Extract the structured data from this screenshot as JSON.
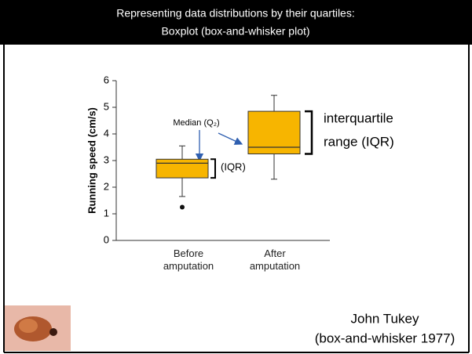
{
  "header": {
    "line1": "Representing data distributions by their quartiles:",
    "line2": "Boxplot (box-and-whisker plot)"
  },
  "chart_data": {
    "type": "box",
    "y_label": "Running speed (cm/s)",
    "categories": [
      "Before amputation",
      "After amputation"
    ],
    "boxes": [
      {
        "whislo": 1.65,
        "q1": 2.35,
        "med": 2.9,
        "q3": 3.05,
        "whishi": 3.55,
        "fliers": [
          1.25
        ]
      },
      {
        "whislo": 2.3,
        "q1": 3.25,
        "med": 3.5,
        "q3": 4.85,
        "whishi": 5.45,
        "fliers": []
      }
    ],
    "color": "#f7b500",
    "ylim": [
      0,
      6
    ],
    "yticks": [
      0,
      1,
      2,
      3,
      4,
      5,
      6
    ],
    "annotations": {
      "median_label": "Median (Q₂)",
      "iqr_small": "(IQR)",
      "iqr_big_1": "interquartile",
      "iqr_big_2": "range (IQR)"
    }
  },
  "credit": {
    "line1": "John Tukey",
    "line2": "(box-and-whisker 1977)"
  }
}
